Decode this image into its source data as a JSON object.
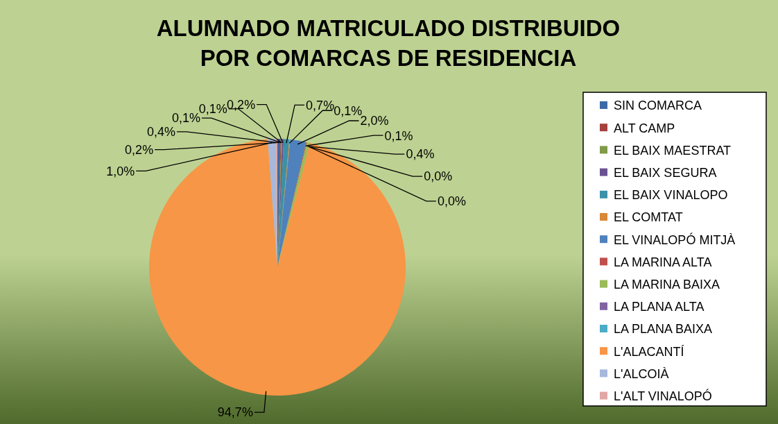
{
  "chart_data": {
    "type": "pie",
    "title": "ALUMNADO MATRICULADO DISTRIBUIDO\nPOR COMARCAS DE RESIDENCIA",
    "categories": [
      "SIN COMARCA",
      "ALT CAMP",
      "EL BAIX MAESTRAT",
      "EL BAIX SEGURA",
      "EL BAIX VINALOPO",
      "EL COMTAT",
      "EL VINALOPÓ MITJÀ",
      "LA MARINA ALTA",
      "LA MARINA BAIXA",
      "LA PLANA ALTA",
      "LA PLANA BAIXA",
      "L'ALACANTÍ",
      "L'ALCOIÀ",
      "L'ALT VINALOPÓ"
    ],
    "values": [
      0.4,
      0.1,
      0.1,
      0.2,
      0.7,
      0.1,
      2.0,
      0.1,
      0.4,
      0.0,
      0.0,
      94.7,
      1.0,
      0.2
    ],
    "value_labels": [
      "0,4%",
      "0,1%",
      "0,1%",
      "0,2%",
      "0,7%",
      "0,1%",
      "2,0%",
      "0,1%",
      "0,4%",
      "0,0%",
      "0,0%",
      "94,7%",
      "1,0%",
      "0,2%"
    ],
    "colors": [
      "#3d6aa6",
      "#a5403d",
      "#7f9a48",
      "#6a5290",
      "#3a91a8",
      "#d98836",
      "#4f81bd",
      "#c0504d",
      "#9bbb59",
      "#8064a2",
      "#4bacc6",
      "#f79646",
      "#a7b8dc",
      "#e0a7a6"
    ],
    "legend": "right"
  }
}
